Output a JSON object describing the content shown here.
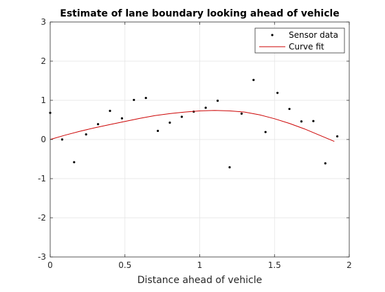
{
  "chart_data": {
    "type": "scatter",
    "title": "Estimate of lane boundary looking ahead of vehicle",
    "xlabel": "Distance ahead of vehicle",
    "ylabel": "",
    "xlim": [
      0,
      2
    ],
    "ylim": [
      -3,
      3
    ],
    "xticks": [
      0,
      0.5,
      1,
      1.5,
      2
    ],
    "yticks": [
      -3,
      -2,
      -1,
      0,
      1,
      2,
      3
    ],
    "xtick_labels": [
      "0",
      "0.5",
      "1",
      "1.5",
      "2"
    ],
    "ytick_labels": [
      "-3",
      "-2",
      "-1",
      "0",
      "1",
      "2",
      "3"
    ],
    "grid": true,
    "legend_position": "top-right",
    "series": [
      {
        "name": "Sensor data",
        "kind": "markers",
        "color": "#000000",
        "x": [
          0.0,
          0.08,
          0.16,
          0.24,
          0.32,
          0.4,
          0.48,
          0.56,
          0.64,
          0.72,
          0.8,
          0.88,
          0.96,
          1.04,
          1.12,
          1.2,
          1.28,
          1.36,
          1.44,
          1.52,
          1.6,
          1.68,
          1.76,
          1.84,
          1.92
        ],
        "y": [
          0.68,
          0.0,
          -0.58,
          0.13,
          0.39,
          0.73,
          0.54,
          1.01,
          1.06,
          0.22,
          0.43,
          0.58,
          0.71,
          0.81,
          0.99,
          -0.71,
          0.66,
          1.52,
          0.19,
          1.19,
          0.78,
          0.46,
          0.47,
          -0.61,
          0.08
        ]
      },
      {
        "name": "Curve fit",
        "kind": "line",
        "color": "#cc0000",
        "x": [
          0.0,
          0.1,
          0.2,
          0.3,
          0.4,
          0.5,
          0.6,
          0.7,
          0.8,
          0.9,
          1.0,
          1.1,
          1.2,
          1.3,
          1.4,
          1.5,
          1.6,
          1.7,
          1.8,
          1.9
        ],
        "y": [
          0.0,
          0.11,
          0.21,
          0.3,
          0.38,
          0.46,
          0.54,
          0.61,
          0.66,
          0.7,
          0.73,
          0.74,
          0.73,
          0.7,
          0.63,
          0.53,
          0.41,
          0.27,
          0.11,
          -0.05
        ]
      }
    ]
  }
}
